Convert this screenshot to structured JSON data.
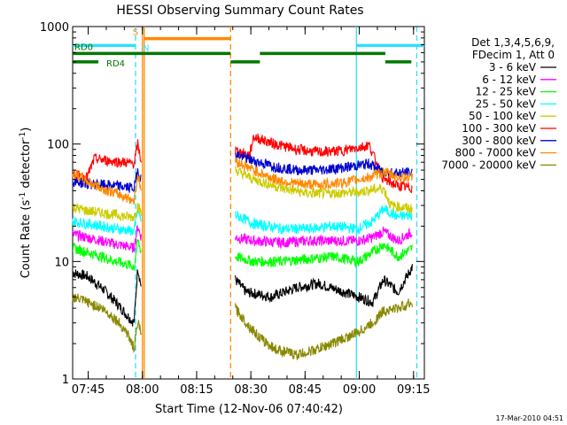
{
  "chart_data": {
    "type": "line",
    "title": "HESSI Observing Summary Count Rates",
    "xlabel": "Start Time (12-Nov-06 07:40:42)",
    "ylabel_main": "Count Rate (s",
    "ylabel_sup1": "-1",
    "ylabel_mid": " detector",
    "ylabel_sup2": "-1",
    "ylabel_end": ")",
    "y_scale": "log",
    "ylim": [
      1,
      1000
    ],
    "xlim_minutes": [
      0,
      97.3
    ],
    "x_ticks": [
      {
        "label": "07:45",
        "minute": 4.3
      },
      {
        "label": "08:00",
        "minute": 19.3
      },
      {
        "label": "08:15",
        "minute": 34.3
      },
      {
        "label": "08:30",
        "minute": 49.3
      },
      {
        "label": "08:45",
        "minute": 64.3
      },
      {
        "label": "09:00",
        "minute": 79.3
      },
      {
        "label": "09:15",
        "minute": 94.3
      }
    ],
    "y_ticks": [
      {
        "label": "1",
        "value": 1
      },
      {
        "label": "10",
        "value": 10
      },
      {
        "label": "100",
        "value": 100
      },
      {
        "label": "1000",
        "value": 1000
      }
    ],
    "legend_header": [
      "Det 1,3,4,5,6,9,",
      "FDecim 1, Att 0"
    ],
    "legend_placement": "right",
    "series": [
      {
        "name": "3 - 6 keV",
        "color": "#000000",
        "values": [
          [
            0,
            8
          ],
          [
            4,
            7.5
          ],
          [
            8,
            6
          ],
          [
            12,
            4.5
          ],
          [
            15,
            3.5
          ],
          [
            17,
            3
          ],
          [
            18,
            9
          ],
          [
            19,
            6
          ]
        ],
        "values2": [
          [
            45,
            7
          ],
          [
            48,
            5.5
          ],
          [
            55,
            5
          ],
          [
            62,
            6
          ],
          [
            68,
            6.5
          ],
          [
            75,
            5.5
          ],
          [
            79,
            5
          ],
          [
            83,
            4.5
          ],
          [
            86,
            7
          ],
          [
            90,
            5.5
          ],
          [
            94,
            9
          ]
        ]
      },
      {
        "name": "6 - 12 keV",
        "color": "#ff00ff",
        "values": [
          [
            0,
            17
          ],
          [
            4,
            16
          ],
          [
            8,
            15
          ],
          [
            12,
            14
          ],
          [
            15,
            13.5
          ],
          [
            17,
            13
          ],
          [
            18,
            20
          ],
          [
            19,
            16
          ]
        ],
        "values2": [
          [
            45,
            16
          ],
          [
            50,
            15
          ],
          [
            58,
            14.5
          ],
          [
            65,
            15
          ],
          [
            72,
            15
          ],
          [
            79,
            15
          ],
          [
            83,
            16
          ],
          [
            86,
            18
          ],
          [
            90,
            15
          ],
          [
            94,
            18
          ]
        ]
      },
      {
        "name": "12 - 25 keV",
        "color": "#00ff00",
        "values": [
          [
            0,
            13
          ],
          [
            4,
            12
          ],
          [
            8,
            11
          ],
          [
            12,
            10
          ],
          [
            15,
            9.5
          ],
          [
            17,
            9
          ],
          [
            18,
            15
          ],
          [
            19,
            12
          ]
        ],
        "values2": [
          [
            45,
            11
          ],
          [
            50,
            10
          ],
          [
            58,
            10
          ],
          [
            65,
            10.5
          ],
          [
            72,
            11
          ],
          [
            79,
            10
          ],
          [
            83,
            12
          ],
          [
            86,
            14
          ],
          [
            90,
            11
          ],
          [
            94,
            13
          ]
        ]
      },
      {
        "name": "25 - 50 keV",
        "color": "#00ffff",
        "values": [
          [
            0,
            22
          ],
          [
            4,
            21
          ],
          [
            8,
            20
          ],
          [
            12,
            19
          ],
          [
            15,
            18.5
          ],
          [
            17,
            18
          ],
          [
            18,
            28
          ],
          [
            19,
            22
          ]
        ],
        "values2": [
          [
            45,
            25
          ],
          [
            50,
            21
          ],
          [
            58,
            19
          ],
          [
            65,
            19
          ],
          [
            72,
            20
          ],
          [
            79,
            19
          ],
          [
            83,
            22
          ],
          [
            86,
            28
          ],
          [
            90,
            24
          ],
          [
            94,
            25
          ]
        ]
      },
      {
        "name": "50 - 100 keV",
        "color": "#cccc00",
        "values": [
          [
            0,
            29
          ],
          [
            4,
            27
          ],
          [
            8,
            26
          ],
          [
            12,
            25
          ],
          [
            15,
            24
          ],
          [
            17,
            24
          ],
          [
            18,
            30
          ],
          [
            19,
            26
          ]
        ],
        "values2": [
          [
            45,
            60
          ],
          [
            50,
            50
          ],
          [
            58,
            42
          ],
          [
            65,
            38
          ],
          [
            72,
            38
          ],
          [
            79,
            39
          ],
          [
            83,
            41
          ],
          [
            86,
            42
          ],
          [
            88,
            30
          ],
          [
            94,
            28
          ]
        ]
      },
      {
        "name": "100 - 300 keV",
        "color": "#ff0000",
        "values": [
          [
            0,
            55
          ],
          [
            4,
            52
          ],
          [
            6,
            75
          ],
          [
            10,
            72
          ],
          [
            14,
            70
          ],
          [
            17,
            68
          ],
          [
            18,
            100
          ],
          [
            19,
            70
          ]
        ],
        "values2": [
          [
            45,
            88
          ],
          [
            49,
            80
          ],
          [
            50,
            115
          ],
          [
            56,
            100
          ],
          [
            62,
            90
          ],
          [
            68,
            85
          ],
          [
            75,
            88
          ],
          [
            82,
            98
          ],
          [
            86,
            50
          ],
          [
            90,
            44
          ],
          [
            94,
            42
          ]
        ]
      },
      {
        "name": "300 - 800 keV",
        "color": "#0000cc",
        "values": [
          [
            0,
            48
          ],
          [
            4,
            46
          ],
          [
            8,
            45
          ],
          [
            12,
            44
          ],
          [
            15,
            43
          ],
          [
            17,
            42
          ],
          [
            18,
            60
          ],
          [
            19,
            50
          ]
        ],
        "values2": [
          [
            45,
            82
          ],
          [
            50,
            72
          ],
          [
            56,
            64
          ],
          [
            62,
            60
          ],
          [
            68,
            60
          ],
          [
            75,
            63
          ],
          [
            82,
            68
          ],
          [
            86,
            58
          ],
          [
            90,
            57
          ],
          [
            94,
            57
          ]
        ]
      },
      {
        "name": "800 - 7000 keV",
        "color": "#ff8800",
        "values": [
          [
            0,
            57
          ],
          [
            4,
            48
          ],
          [
            8,
            42
          ],
          [
            12,
            38
          ],
          [
            15,
            35
          ],
          [
            17,
            33
          ],
          [
            18,
            55
          ],
          [
            19,
            40
          ]
        ],
        "values2": [
          [
            45,
            72
          ],
          [
            50,
            60
          ],
          [
            56,
            50
          ],
          [
            62,
            46
          ],
          [
            68,
            45
          ],
          [
            75,
            47
          ],
          [
            82,
            52
          ],
          [
            86,
            58
          ],
          [
            90,
            52
          ],
          [
            94,
            52
          ]
        ]
      },
      {
        "name": "7000 - 20000 keV",
        "color": "#888800",
        "values": [
          [
            0,
            5
          ],
          [
            4,
            4.5
          ],
          [
            8,
            4
          ],
          [
            12,
            3.2
          ],
          [
            15,
            2.5
          ],
          [
            17,
            1.8
          ],
          [
            18,
            3
          ],
          [
            19,
            2.5
          ]
        ],
        "values2": [
          [
            45,
            4
          ],
          [
            48,
            3
          ],
          [
            52,
            2.2
          ],
          [
            56,
            1.8
          ],
          [
            62,
            1.6
          ],
          [
            68,
            1.8
          ],
          [
            75,
            2.2
          ],
          [
            79,
            2.5
          ],
          [
            83,
            3
          ],
          [
            86,
            3.8
          ],
          [
            90,
            4
          ],
          [
            94,
            4.5
          ]
        ]
      }
    ],
    "flag_bars": [
      {
        "label": "S",
        "color": "#ff8800",
        "start": 19.8,
        "end": 43.7,
        "value": 790
      },
      {
        "label": "N",
        "color": "#33ddff",
        "start": 0,
        "end": 17.4,
        "value": 690
      },
      {
        "label": "N",
        "color": "#33ddff",
        "start": 78.5,
        "end": 97.3,
        "value": 690
      },
      {
        "label": "RD0",
        "color": "#007700",
        "start": 0,
        "end": 43.7,
        "value": 590
      },
      {
        "label": "",
        "color": "#007700",
        "start": 51.8,
        "end": 86.5,
        "value": 590
      },
      {
        "label": "RD4",
        "color": "#007700",
        "start": 0,
        "end": 7.1,
        "value": 500
      },
      {
        "label": "",
        "color": "#007700",
        "start": 43.7,
        "end": 51.8,
        "value": 500
      },
      {
        "label": "",
        "color": "#007700",
        "start": 86.5,
        "end": 93.7,
        "value": 500
      }
    ],
    "vlines": [
      {
        "minute": 17.4,
        "color": "#33ddff",
        "style": "dashed"
      },
      {
        "minute": 19.3,
        "color": "#ff8800",
        "style": "solid"
      },
      {
        "minute": 19.8,
        "color": "#ff8800",
        "style": "solid"
      },
      {
        "minute": 43.7,
        "color": "#ff8800",
        "style": "dashed"
      },
      {
        "minute": 78.5,
        "color": "#33ddff",
        "style": "solid"
      },
      {
        "minute": 95.2,
        "color": "#33ddff",
        "style": "dashed"
      }
    ]
  },
  "footer_timestamp": "17-Mar-2010 04:51"
}
